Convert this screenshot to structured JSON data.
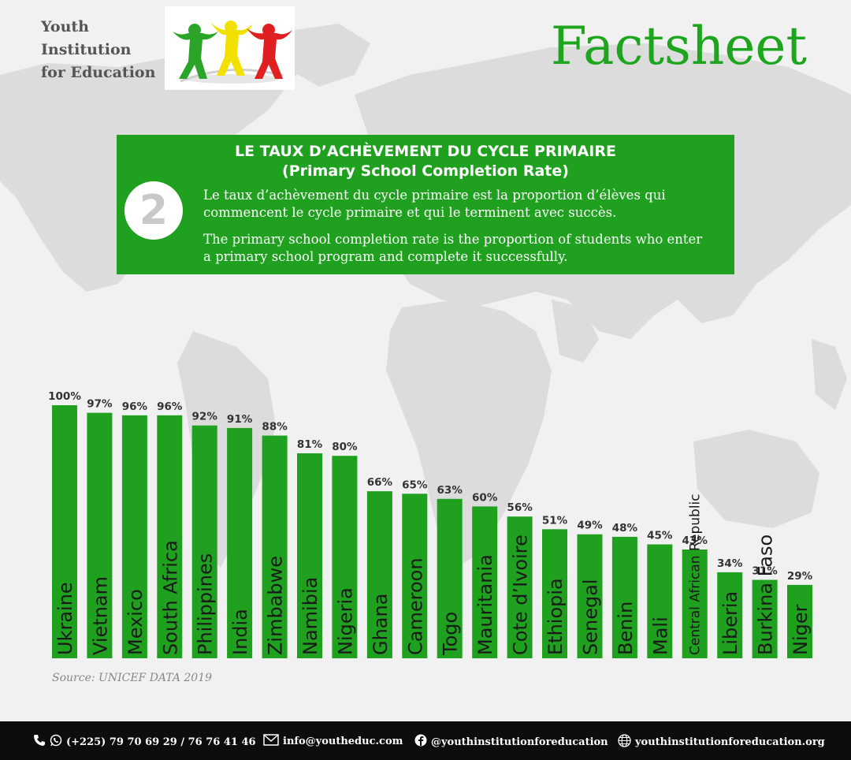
{
  "header": {
    "org_line1": "Youth",
    "org_line2": "Institution",
    "org_line3": "for Education",
    "title": "Factsheet"
  },
  "info": {
    "number": "2",
    "title_fr": "LE TAUX D’ACHÈVEMENT DU CYCLE PRIMAIRE",
    "title_en": "(Primary School Completion Rate)",
    "desc_fr": "Le taux d’achèvement du cycle primaire est la proportion d’élèves qui commencent le cycle primaire et qui le terminent avec succès.",
    "desc_en": "The primary school completion rate is the proportion of students who enter a primary school program and complete it successfully."
  },
  "chart_data": {
    "type": "bar",
    "categories": [
      "Ukraine",
      "Vietnam",
      "Mexico",
      "South Africa",
      "Philippines",
      "India",
      "Zimbabwe",
      "Namibia",
      "Nigeria",
      "Ghana",
      "Cameroon",
      "Togo",
      "Mauritania",
      "Cote d’Ivoire",
      "Ethiopia",
      "Senegal",
      "Benin",
      "Mali",
      "Central African Republic",
      "Liberia",
      "Burkina Faso",
      "Niger"
    ],
    "values": [
      100,
      97,
      96,
      96,
      92,
      91,
      88,
      81,
      80,
      66,
      65,
      63,
      60,
      56,
      51,
      49,
      48,
      45,
      43,
      34,
      31,
      29
    ],
    "labels": [
      "100%",
      "97%",
      "96%",
      "96%",
      "92%",
      "91%",
      "88%",
      "81%",
      "80%",
      "66%",
      "65%",
      "63%",
      "60%",
      "56%",
      "51%",
      "49%",
      "48%",
      "45%",
      "43%",
      "34%",
      "31%",
      "29%"
    ],
    "unit": "%",
    "ylim": [
      0,
      100
    ],
    "bar_color": "#1fa11f"
  },
  "source": "Source: UNICEF DATA 2019",
  "footer": {
    "phone": "(+225) 79 70 69 29 / 76 76 41 46",
    "email": "info@youtheduc.com",
    "facebook": "@youthinstitutionforeducation",
    "website": "youthinstitutionforeducation.org"
  }
}
